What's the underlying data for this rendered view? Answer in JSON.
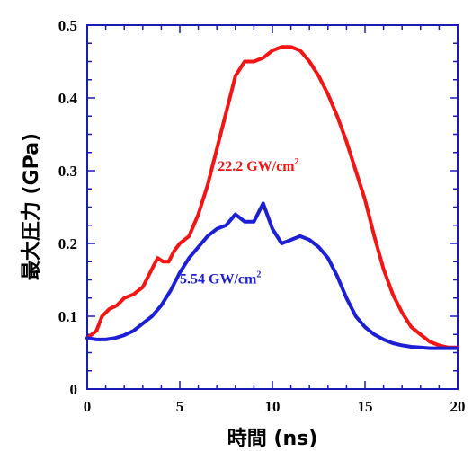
{
  "chart_data": {
    "type": "line",
    "xlabel": "時間 (ns)",
    "ylabel": "最大圧力 (GPa)",
    "xlim": [
      0,
      20
    ],
    "ylim": [
      0,
      0.5
    ],
    "x_ticks": [
      "0",
      "5",
      "10",
      "15",
      "20"
    ],
    "y_ticks": [
      "0",
      "0.1",
      "0.2",
      "0.3",
      "0.4",
      "0.5"
    ],
    "grid": false,
    "annotations": [
      {
        "main": "22.2 GW/cm",
        "sup": "2",
        "color": "#f41414",
        "x": 7.05,
        "y": 0.3
      },
      {
        "main": "5.54 GW/cm",
        "sup": "2",
        "color": "#1d1fd6",
        "x": 5.0,
        "y": 0.145
      }
    ],
    "series": [
      {
        "color": "#f41414",
        "x": [
          0,
          0.5,
          0.8,
          1.2,
          1.6,
          2.0,
          2.5,
          3.0,
          3.4,
          3.8,
          4.1,
          4.4,
          4.7,
          5.0,
          5.5,
          6.0,
          6.5,
          7.0,
          7.5,
          8.0,
          8.5,
          9.0,
          9.5,
          10.0,
          10.5,
          11.0,
          11.5,
          12.0,
          12.5,
          13.0,
          13.5,
          14.0,
          14.5,
          15.0,
          15.5,
          16.0,
          16.5,
          17.0,
          17.5,
          18.0,
          18.5,
          19.0,
          19.5,
          20.0
        ],
        "y": [
          0.07,
          0.08,
          0.1,
          0.11,
          0.115,
          0.125,
          0.13,
          0.14,
          0.16,
          0.18,
          0.175,
          0.175,
          0.19,
          0.2,
          0.21,
          0.24,
          0.28,
          0.33,
          0.38,
          0.43,
          0.45,
          0.45,
          0.455,
          0.465,
          0.47,
          0.47,
          0.465,
          0.45,
          0.43,
          0.405,
          0.375,
          0.34,
          0.3,
          0.26,
          0.21,
          0.165,
          0.13,
          0.105,
          0.085,
          0.075,
          0.065,
          0.06,
          0.057,
          0.057
        ]
      },
      {
        "color": "#1d1fd6",
        "x": [
          0,
          0.5,
          1.0,
          1.5,
          2.0,
          2.5,
          3.0,
          3.5,
          4.0,
          4.5,
          5.0,
          5.5,
          6.0,
          6.5,
          7.0,
          7.5,
          8.0,
          8.5,
          9.0,
          9.5,
          10.0,
          10.5,
          11.0,
          11.5,
          12.0,
          12.5,
          13.0,
          13.5,
          14.0,
          14.5,
          15.0,
          15.5,
          16.0,
          16.5,
          17.0,
          17.5,
          18.0,
          18.5,
          19.0,
          19.5,
          20.0
        ],
        "y": [
          0.07,
          0.068,
          0.068,
          0.07,
          0.074,
          0.08,
          0.09,
          0.1,
          0.115,
          0.135,
          0.16,
          0.18,
          0.195,
          0.21,
          0.22,
          0.225,
          0.24,
          0.23,
          0.23,
          0.255,
          0.22,
          0.2,
          0.205,
          0.21,
          0.205,
          0.195,
          0.18,
          0.155,
          0.125,
          0.1,
          0.085,
          0.075,
          0.068,
          0.063,
          0.06,
          0.058,
          0.057,
          0.056,
          0.056,
          0.056,
          0.056
        ]
      }
    ]
  }
}
